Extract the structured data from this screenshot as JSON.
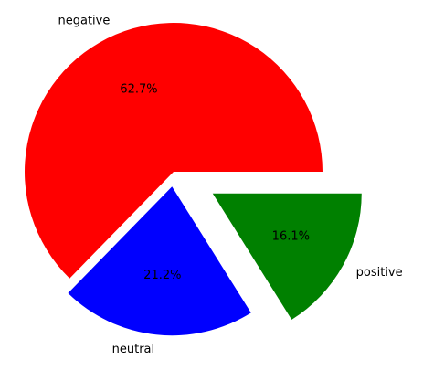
{
  "chart_data": {
    "type": "pie",
    "title": "",
    "slices": [
      {
        "label": "negative",
        "value": 62.7,
        "pct_text": "62.7%",
        "color": "#ff0000",
        "explode": 0.0
      },
      {
        "label": "neutral",
        "value": 21.2,
        "pct_text": "21.2%",
        "color": "#0000ff",
        "explode": 0.1
      },
      {
        "label": "positive",
        "value": 16.1,
        "pct_text": "16.1%",
        "color": "#008000",
        "explode": 0.3
      }
    ],
    "start_angle_deg": 0,
    "counterclock": true,
    "legend": "none",
    "grid": false
  }
}
